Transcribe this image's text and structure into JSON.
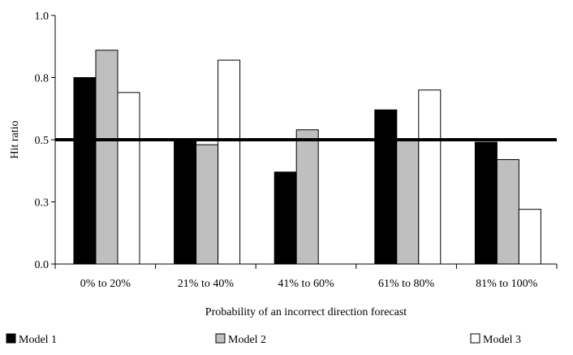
{
  "chart_data": {
    "type": "bar",
    "title": "",
    "xlabel": "Probability of an incorrect direction forecast",
    "ylabel": "Hit ratio",
    "categories": [
      "0% to 20%",
      "21% to 40%",
      "41% to 60%",
      "61% to 80%",
      "81% to 100%"
    ],
    "ylim": [
      0,
      1
    ],
    "y_ticks": [
      "0.0",
      "0.3",
      "0.5",
      "0.8",
      "1.0"
    ],
    "reference_line": 0.5,
    "grid": false,
    "legend_position": "bottom",
    "series": [
      {
        "name": "Model 1",
        "color": "#000000",
        "fill": "#000000",
        "values": [
          0.75,
          0.5,
          0.37,
          0.62,
          0.49
        ]
      },
      {
        "name": "Model 2",
        "color": "#bfbfbf",
        "fill": "#bfbfbf",
        "values": [
          0.86,
          0.48,
          0.54,
          0.5,
          0.42
        ]
      },
      {
        "name": "Model 3",
        "color": "#000000",
        "fill": "#ffffff",
        "values": [
          0.69,
          0.82,
          null,
          0.7,
          0.22
        ]
      }
    ]
  }
}
